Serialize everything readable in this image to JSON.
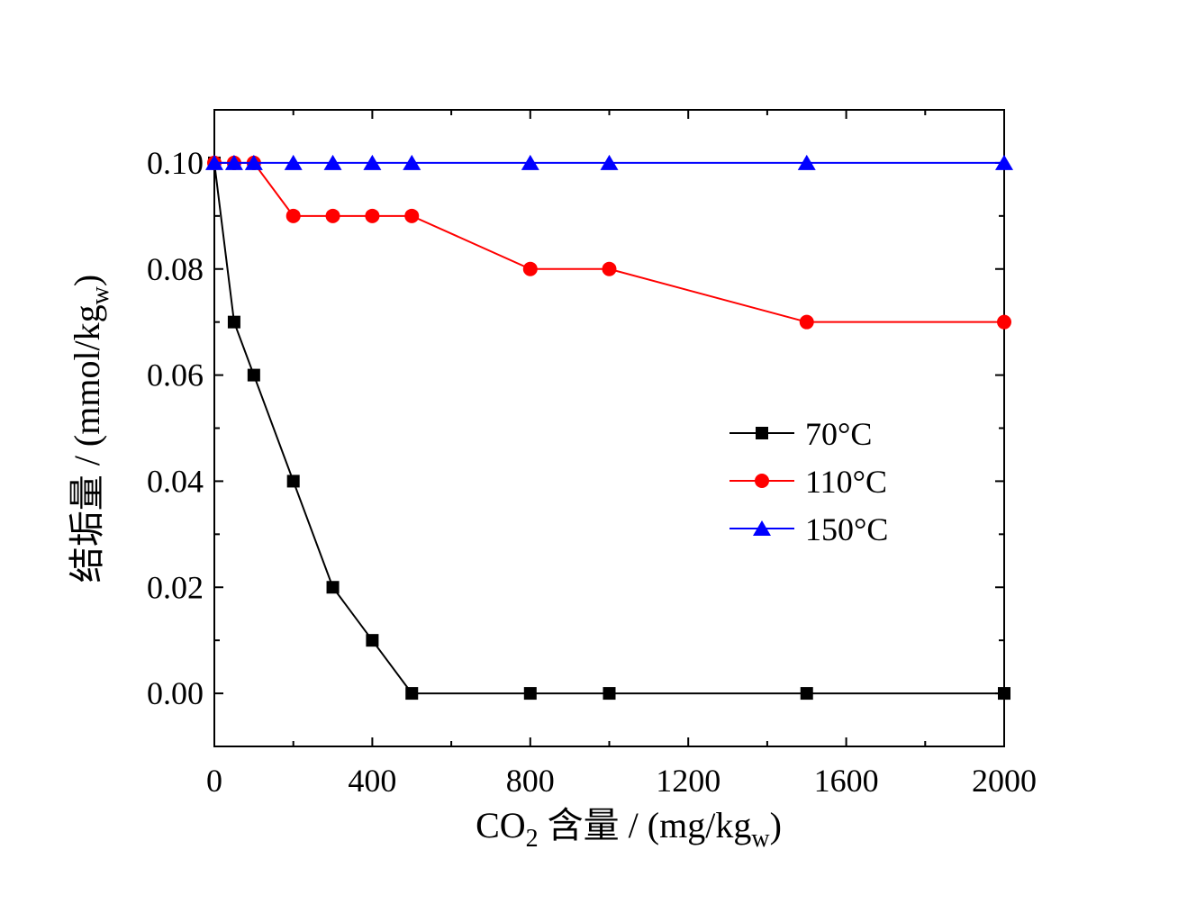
{
  "chart_data": {
    "type": "line",
    "xlabel": {
      "prefix": "CO",
      "sub": "2",
      "middle": " 含量 / (mg/kg",
      "sub2": "w",
      "suffix": ")"
    },
    "ylabel": {
      "prefix": "结垢量 / (mmol/kg",
      "sub": "w",
      "suffix": ")"
    },
    "xlim": [
      0,
      2000
    ],
    "ylim": [
      -0.01,
      0.11
    ],
    "x_ticks": [
      0,
      400,
      800,
      1200,
      1600,
      2000
    ],
    "x_tick_labels": [
      "0",
      "400",
      "800",
      "1200",
      "1600",
      "2000"
    ],
    "y_ticks": [
      0.0,
      0.02,
      0.04,
      0.06,
      0.08,
      0.1
    ],
    "y_tick_labels": [
      "0.00",
      "0.02",
      "0.04",
      "0.06",
      "0.08",
      "0.10"
    ],
    "grid": false,
    "legend_position": "right-middle",
    "series": [
      {
        "name": "70°C",
        "color": "#000000",
        "marker": "square",
        "x": [
          0,
          50,
          100,
          200,
          300,
          400,
          500,
          800,
          1000,
          1500,
          2000
        ],
        "y": [
          0.1,
          0.07,
          0.06,
          0.04,
          0.02,
          0.01,
          0.0,
          0.0,
          0.0,
          0.0,
          0.0
        ]
      },
      {
        "name": "110°C",
        "color": "#ff0000",
        "marker": "circle",
        "x": [
          0,
          50,
          100,
          200,
          300,
          400,
          500,
          800,
          1000,
          1500,
          2000
        ],
        "y": [
          0.1,
          0.1,
          0.1,
          0.09,
          0.09,
          0.09,
          0.09,
          0.08,
          0.08,
          0.07,
          0.07
        ]
      },
      {
        "name": "150°C",
        "color": "#0000ff",
        "marker": "triangle",
        "x": [
          0,
          50,
          100,
          200,
          300,
          400,
          500,
          800,
          1000,
          1500,
          2000
        ],
        "y": [
          0.1,
          0.1,
          0.1,
          0.1,
          0.1,
          0.1,
          0.1,
          0.1,
          0.1,
          0.1,
          0.1
        ]
      }
    ]
  }
}
